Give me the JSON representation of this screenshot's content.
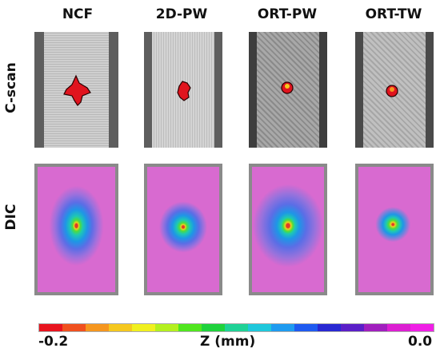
{
  "columns": [
    "NCF",
    "2D-PW",
    "ORT-PW",
    "ORT-TW"
  ],
  "rows": [
    "C-scan",
    "DIC"
  ],
  "colorbar": {
    "label": "Z (mm)",
    "min_label": "-0.2",
    "max_label": "0.0",
    "colors": [
      "#e8141e",
      "#f0501e",
      "#f5961e",
      "#f5c81e",
      "#f0f01e",
      "#b4f01e",
      "#50e61e",
      "#1ed23c",
      "#1ed296",
      "#1ec8dc",
      "#1e9bf0",
      "#1e5af0",
      "#2828d2",
      "#5a1ec8",
      "#a01ebe",
      "#dc1ed2",
      "#f01ee6"
    ]
  }
}
